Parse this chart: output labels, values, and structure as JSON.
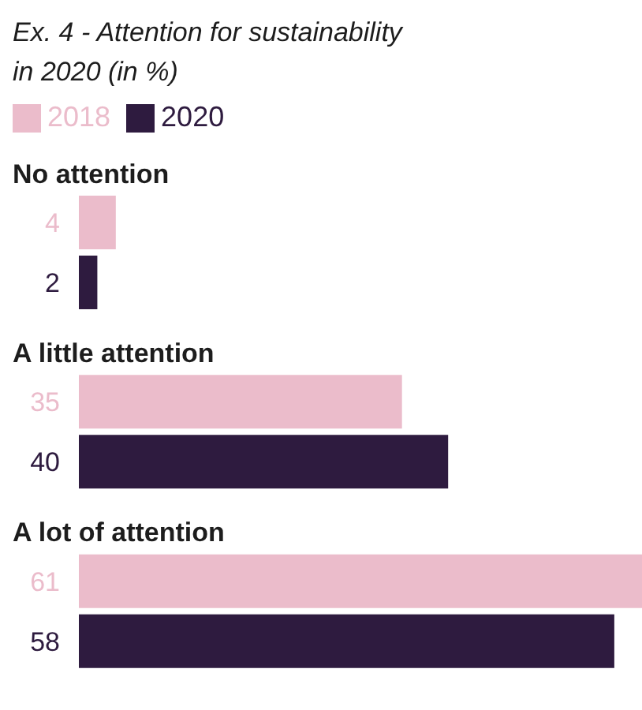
{
  "chart_data": {
    "type": "bar",
    "orientation": "horizontal",
    "title": "Ex. 4 - Attention for sustainability in 2020 (in %)",
    "categories": [
      "No attention",
      "A little attention",
      "A lot of attention"
    ],
    "series": [
      {
        "name": "2018",
        "color": "#ebbccb",
        "values": [
          4,
          35,
          61
        ]
      },
      {
        "name": "2020",
        "color": "#2e1b3f",
        "values": [
          2,
          40,
          58
        ]
      }
    ],
    "data_labels": true,
    "legend": "top left",
    "grid": false
  }
}
